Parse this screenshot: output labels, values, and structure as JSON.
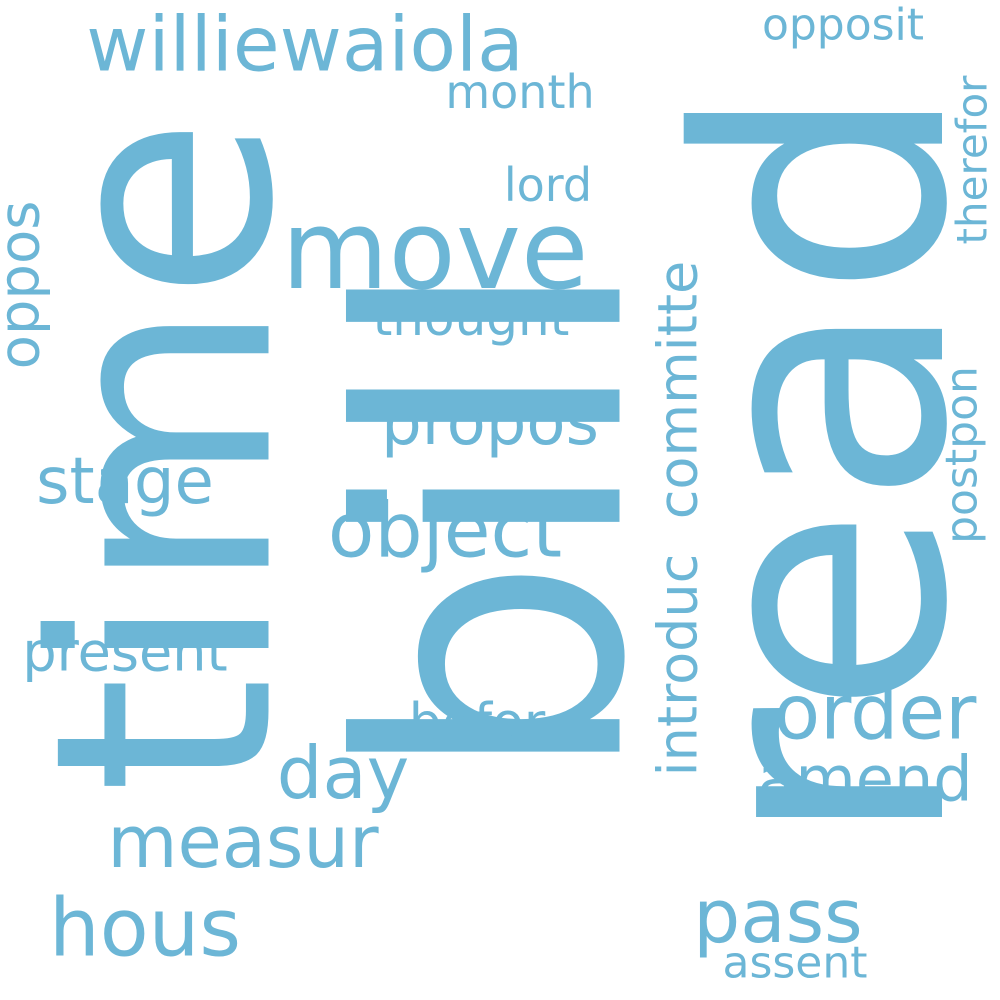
{
  "title": "",
  "color": "#6cb6d6",
  "words": [
    {
      "id": "bill",
      "text": "bill"
    },
    {
      "id": "read",
      "text": "read"
    },
    {
      "id": "time",
      "text": "time"
    },
    {
      "id": "move",
      "text": "move"
    },
    {
      "id": "williewaiola",
      "text": "williewaiola"
    },
    {
      "id": "hous",
      "text": "hous"
    },
    {
      "id": "object",
      "text": "object"
    },
    {
      "id": "order",
      "text": "order"
    },
    {
      "id": "pass",
      "text": "pass"
    },
    {
      "id": "measur",
      "text": "measur"
    },
    {
      "id": "day",
      "text": "day"
    },
    {
      "id": "propos",
      "text": "propos"
    },
    {
      "id": "stage",
      "text": "stage"
    },
    {
      "id": "amend",
      "text": "amend"
    },
    {
      "id": "introduc",
      "text": "introduc"
    },
    {
      "id": "committe",
      "text": "committe"
    },
    {
      "id": "oppos",
      "text": "oppos"
    },
    {
      "id": "present",
      "text": "present"
    },
    {
      "id": "befor",
      "text": "befor"
    },
    {
      "id": "thought",
      "text": "thought"
    },
    {
      "id": "postpon",
      "text": "postpon"
    },
    {
      "id": "month",
      "text": "month"
    },
    {
      "id": "opposit",
      "text": "opposit"
    },
    {
      "id": "lord",
      "text": "lord"
    },
    {
      "id": "therefor",
      "text": "therefor"
    },
    {
      "id": "assent",
      "text": "assent"
    }
  ]
}
